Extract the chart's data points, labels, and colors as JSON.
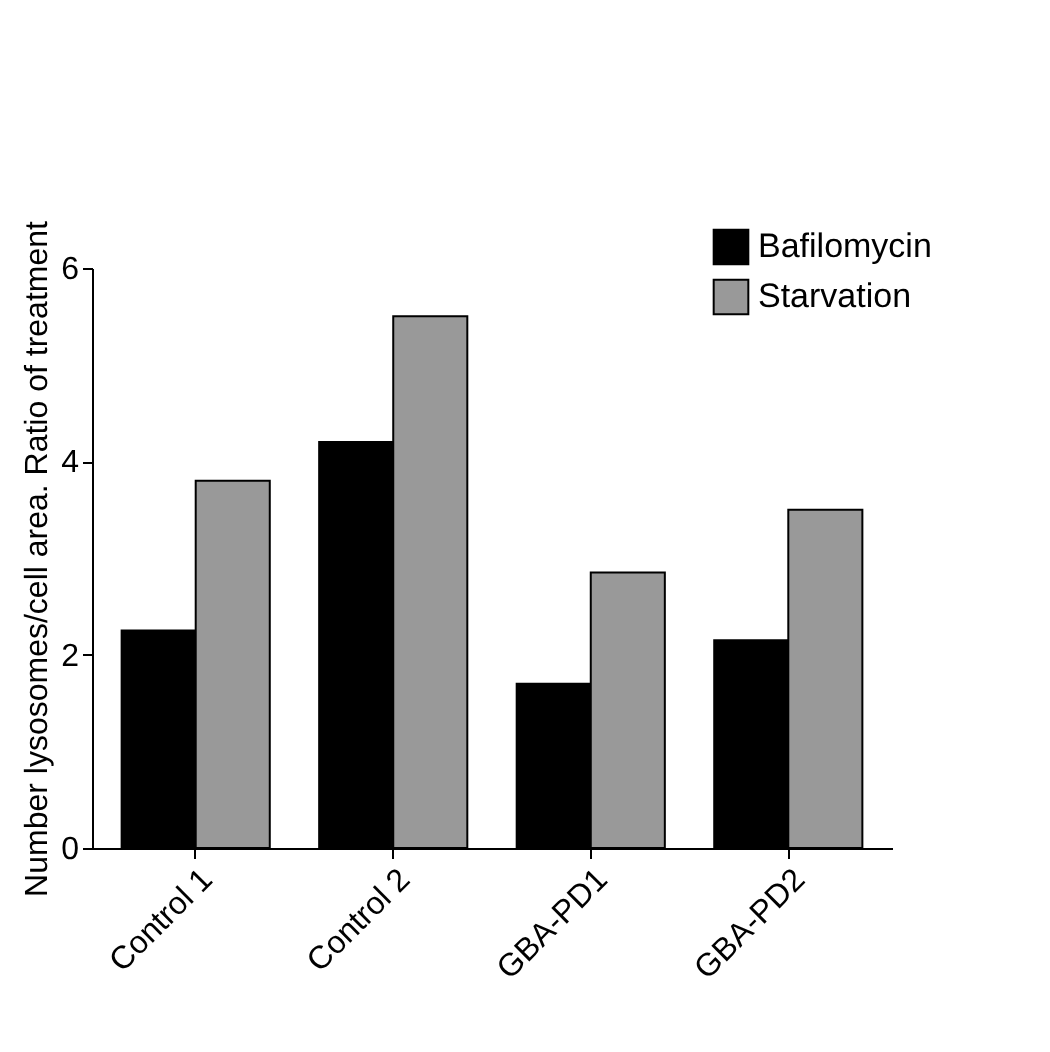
{
  "chart_data": {
    "type": "bar",
    "ylabel": "Number lysosomes/cell area. Ratio of treatment",
    "categories": [
      "Control 1",
      "Control 2",
      "GBA-PD1",
      "GBA-PD2"
    ],
    "series": [
      {
        "name": "Bafilomycin",
        "color": "#000000",
        "values": [
          2.25,
          4.2,
          1.7,
          2.15
        ]
      },
      {
        "name": "Starvation",
        "color": "#999999",
        "values": [
          3.8,
          5.5,
          2.85,
          3.5
        ]
      }
    ],
    "ylim": [
      0,
      6
    ],
    "yticks": [
      0,
      2,
      4,
      6
    ],
    "grid": false,
    "legend": "top right"
  }
}
